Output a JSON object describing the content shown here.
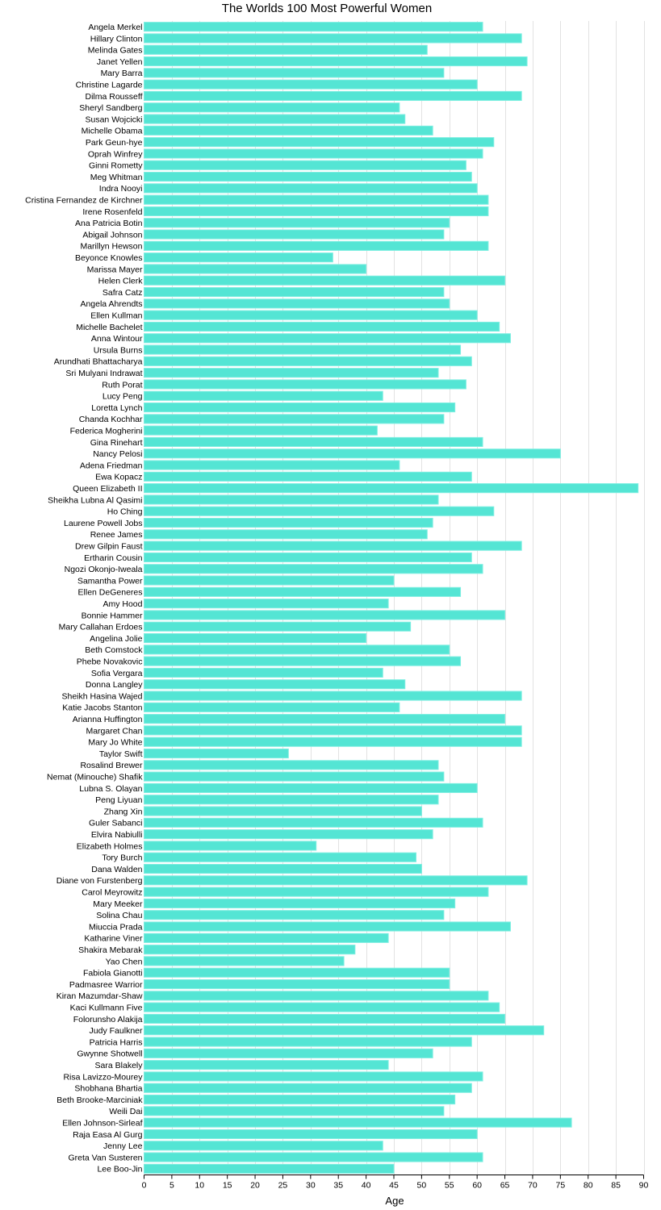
{
  "chart_data": {
    "type": "bar",
    "orientation": "horizontal",
    "title": "The Worlds 100 Most Powerful Women",
    "xlabel": "Age",
    "ylabel": "",
    "xlim": [
      0,
      90
    ],
    "x_ticks": [
      0,
      5,
      10,
      15,
      20,
      25,
      30,
      35,
      40,
      45,
      50,
      55,
      60,
      65,
      70,
      75,
      80,
      85,
      90
    ],
    "grid": true,
    "bar_color": "#54e5d4",
    "categories": [
      "Angela Merkel",
      "Hillary Clinton",
      "Melinda Gates",
      "Janet Yellen",
      "Mary Barra",
      "Christine Lagarde",
      "Dilma Rousseff",
      "Sheryl Sandberg",
      "Susan Wojcicki",
      "Michelle Obama",
      "Park Geun-hye",
      "Oprah Winfrey",
      "Ginni Rometty",
      "Meg Whitman",
      "Indra Nooyi",
      "Cristina Fernandez de Kirchner",
      "Irene Rosenfeld",
      "Ana Patricia Botin",
      "Abigail Johnson",
      "Marillyn Hewson",
      "Beyonce Knowles",
      "Marissa Mayer",
      "Helen Clerk",
      "Safra Catz",
      "Angela Ahrendts",
      "Ellen Kullman",
      "Michelle Bachelet",
      "Anna Wintour",
      "Ursula Burns",
      "Arundhati Bhattacharya",
      "Sri Mulyani Indrawat",
      "Ruth Porat",
      "Lucy Peng",
      "Loretta Lynch",
      "Chanda Kochhar",
      "Federica Mogherini",
      "Gina Rinehart",
      "Nancy Pelosi",
      "Adena Friedman",
      "Ewa Kopacz",
      "Queen Elizabeth II",
      "Sheikha Lubna Al Qasimi",
      "Ho Ching",
      "Laurene Powell Jobs",
      "Renee James",
      "Drew Gilpin Faust",
      "Ertharin Cousin",
      "Ngozi Okonjo-Iweala",
      "Samantha Power",
      "Ellen DeGeneres",
      "Amy Hood",
      "Bonnie Hammer",
      "Mary Callahan Erdoes",
      "Angelina Jolie",
      "Beth Comstock",
      "Phebe Novakovic",
      "Sofia Vergara",
      "Donna Langley",
      "Sheikh Hasina Wajed",
      "Katie Jacobs Stanton",
      "Arianna Huffington",
      "Margaret Chan",
      "Mary Jo White",
      "Taylor Swift",
      "Rosalind Brewer",
      "Nemat (Minouche) Shafik",
      "Lubna S. Olayan",
      "Peng Liyuan",
      "Zhang Xin",
      "Guler Sabanci",
      "Elvira Nabiulli",
      "Elizabeth Holmes",
      "Tory Burch",
      "Dana Walden",
      "Diane von Furstenberg",
      "Carol Meyrowitz",
      "Mary Meeker",
      "Solina Chau",
      "Miuccia Prada",
      "Katharine Viner",
      "Shakira Mebarak",
      "Yao Chen",
      "Fabiola Gianotti",
      "Padmasree Warrior",
      "Kiran Mazumdar-Shaw",
      "Kaci Kullmann Five",
      "Folorunsho Alakija",
      "Judy Faulkner",
      "Patricia Harris",
      "Gwynne Shotwell",
      "Sara Blakely",
      "Risa Lavizzo-Mourey",
      "Shobhana Bhartia",
      "Beth Brooke-Marciniak",
      "Weili Dai",
      "Ellen Johnson-Sirleaf",
      "Raja Easa Al Gurg",
      "Jenny Lee",
      "Greta Van Susteren",
      "Lee Boo-Jin"
    ],
    "values": [
      61,
      68,
      51,
      69,
      54,
      60,
      68,
      46,
      47,
      52,
      63,
      61,
      58,
      59,
      60,
      62,
      62,
      55,
      54,
      62,
      34,
      40,
      65,
      54,
      55,
      60,
      64,
      66,
      57,
      59,
      53,
      58,
      43,
      56,
      54,
      42,
      61,
      75,
      46,
      59,
      89,
      53,
      63,
      52,
      51,
      68,
      59,
      61,
      45,
      57,
      44,
      65,
      48,
      40,
      55,
      57,
      43,
      47,
      68,
      46,
      65,
      68,
      68,
      26,
      53,
      54,
      60,
      53,
      50,
      61,
      52,
      31,
      49,
      50,
      69,
      62,
      56,
      54,
      66,
      44,
      38,
      36,
      55,
      55,
      62,
      64,
      65,
      72,
      59,
      52,
      44,
      61,
      59,
      56,
      54,
      77,
      60,
      43,
      61,
      45
    ]
  }
}
